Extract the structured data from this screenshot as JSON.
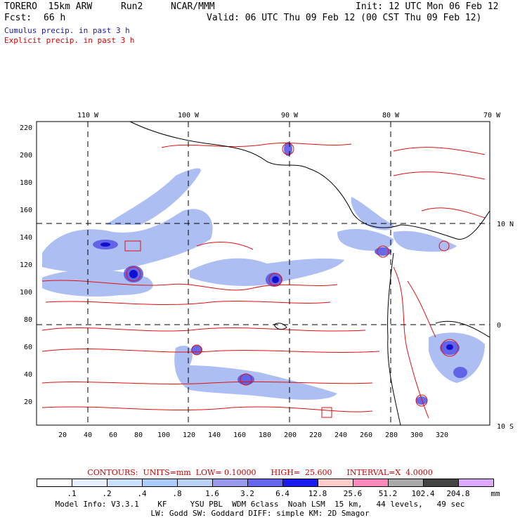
{
  "header": {
    "model": "TORERO  15km ARW",
    "run": "Run2",
    "org": "NCAR/MMM",
    "init": "Init: 12 UTC Mon 06 Feb 12",
    "fcst_label": "Fcst:",
    "fcst_value": "66 h",
    "valid": "Valid: 06 UTC Thu 09 Feb 12 (00 CST Thu 09 Feb 12)",
    "cumulus": "Cumulus precip. in past 3 h",
    "explicit": "Explicit precip. in past 3 h"
  },
  "map": {
    "lon_labels": [
      "110 W",
      "100 W",
      "90 W",
      "80 W",
      "70 W"
    ],
    "lat_labels": [
      "10 N",
      "0",
      "10 S"
    ],
    "y_ticks": [
      "220",
      "200",
      "180",
      "160",
      "140",
      "120",
      "100",
      "80",
      "60",
      "40",
      "20"
    ],
    "x_ticks": [
      "20",
      "40",
      "60",
      "80",
      "100",
      "120",
      "140",
      "160",
      "180",
      "200",
      "220",
      "240",
      "260",
      "280",
      "300",
      "320"
    ]
  },
  "contours_text": "CONTOURS:  UNITS=mm  LOW= 0.10000      HIGH=  25.600      INTERVAL=X  4.0000",
  "legend": {
    "unit": "mm",
    "labels": [
      ".1",
      ".2",
      ".4",
      ".8",
      "1.6",
      "3.2",
      "6.4",
      "12.8",
      "25.6",
      "51.2",
      "102.4",
      "204.8"
    ],
    "colors": [
      "#ffffff",
      "#e8f0ff",
      "#cce0ff",
      "#aaccff",
      "#bcd2f5",
      "#9999ee",
      "#6666ee",
      "#1a1aee",
      "#ffcccc",
      "#ff88bb",
      "#aaaaaa",
      "#444444",
      "#ddaaff"
    ]
  },
  "footer": {
    "line1": "Model Info: V3.3.1    KF     YSU PBL  WDM 6class  Noah LSM  15 km,   44 levels,   49 sec",
    "line2": "LW: Godd SW: Goddard DIFF: simple KM: 2D Smagor"
  }
}
